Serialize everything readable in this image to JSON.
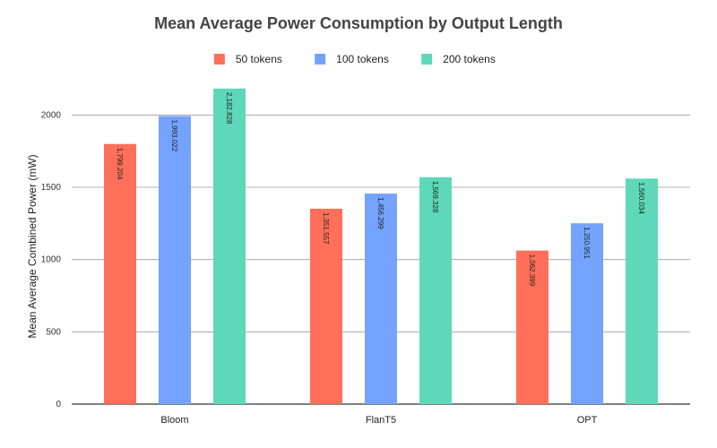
{
  "chart_data": {
    "type": "bar",
    "title": "Mean Average Power Consumption by Output Length",
    "xlabel": "",
    "ylabel": "Mean Average Combined Power (mW)",
    "categories": [
      "Bloom",
      "FlanT5",
      "OPT"
    ],
    "series": [
      {
        "name": "50 tokens",
        "color": "#ff6f59",
        "values": [
          1799.204,
          1351.557,
          1062.399
        ],
        "labels": [
          "1,799.204",
          "1,351.557",
          "1,062.399"
        ]
      },
      {
        "name": "100 tokens",
        "color": "#74a3ff",
        "values": [
          1993.022,
          1456.299,
          1250.951
        ],
        "labels": [
          "1,993.022",
          "1,456.299",
          "1,250.951"
        ]
      },
      {
        "name": "200 tokens",
        "color": "#5dd8b8",
        "values": [
          2182.828,
          1569.328,
          1560.034
        ],
        "labels": [
          "2,182.828",
          "1,569.328",
          "1,560.034"
        ]
      }
    ],
    "ylim": [
      0,
      2250
    ],
    "yticks": [
      0,
      500,
      1000,
      1500,
      2000
    ],
    "grid": true,
    "legend_position": "top"
  }
}
